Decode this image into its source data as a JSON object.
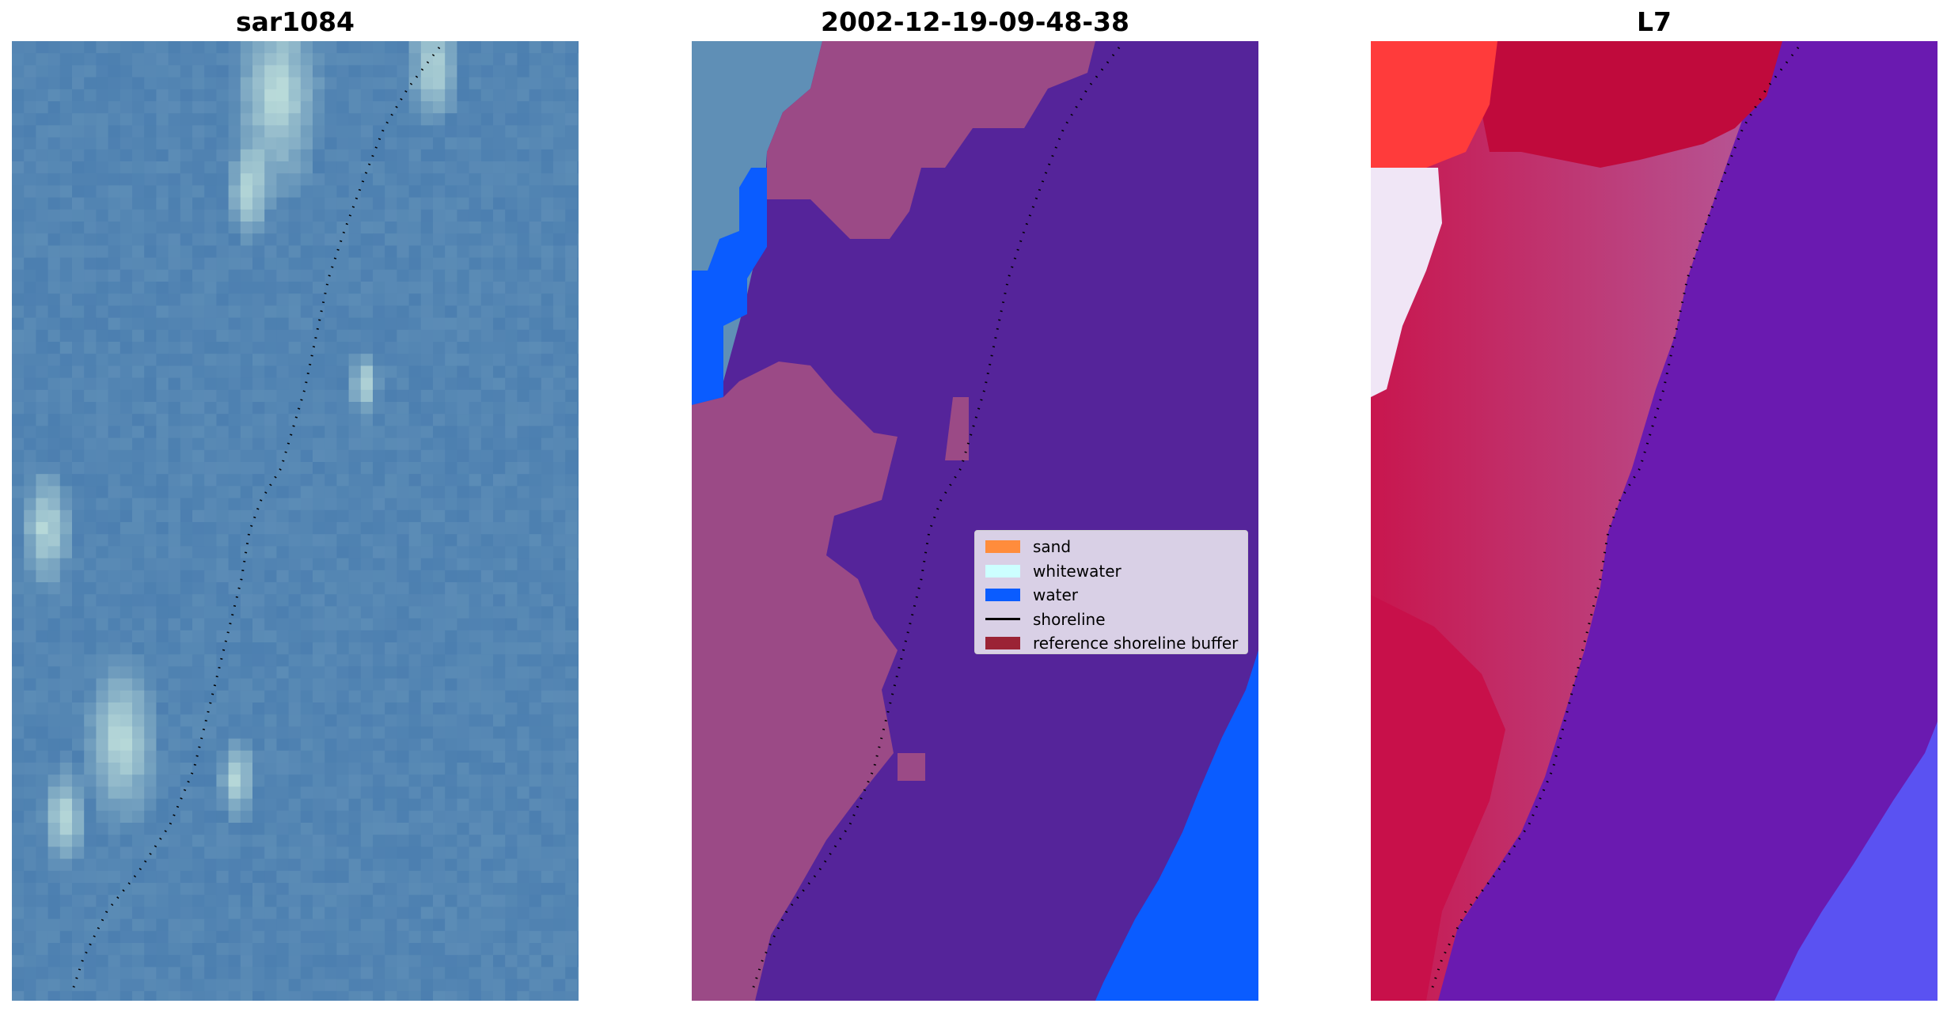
{
  "panels": [
    {
      "title": "sar1084"
    },
    {
      "title": "2002-12-19-09-48-38"
    },
    {
      "title": "L7"
    }
  ],
  "legend": {
    "items": [
      {
        "label": "sand",
        "color": "#ff8c3c"
      },
      {
        "label": "whitewater",
        "color": "#ccffff"
      },
      {
        "label": "water",
        "color": "#0a5cff"
      },
      {
        "label": "shoreline",
        "color": "#000000"
      },
      {
        "label": "reference shoreline buffer",
        "color": "#9b2335"
      }
    ]
  },
  "colors": {
    "sar_water": "#4a7fb2",
    "classified_background": "#55249a",
    "classified_water": "#0a5cff",
    "reference_buffer": "#9b4a86",
    "l7_land": "#c8104a",
    "l7_water": "#6a1ab0"
  }
}
